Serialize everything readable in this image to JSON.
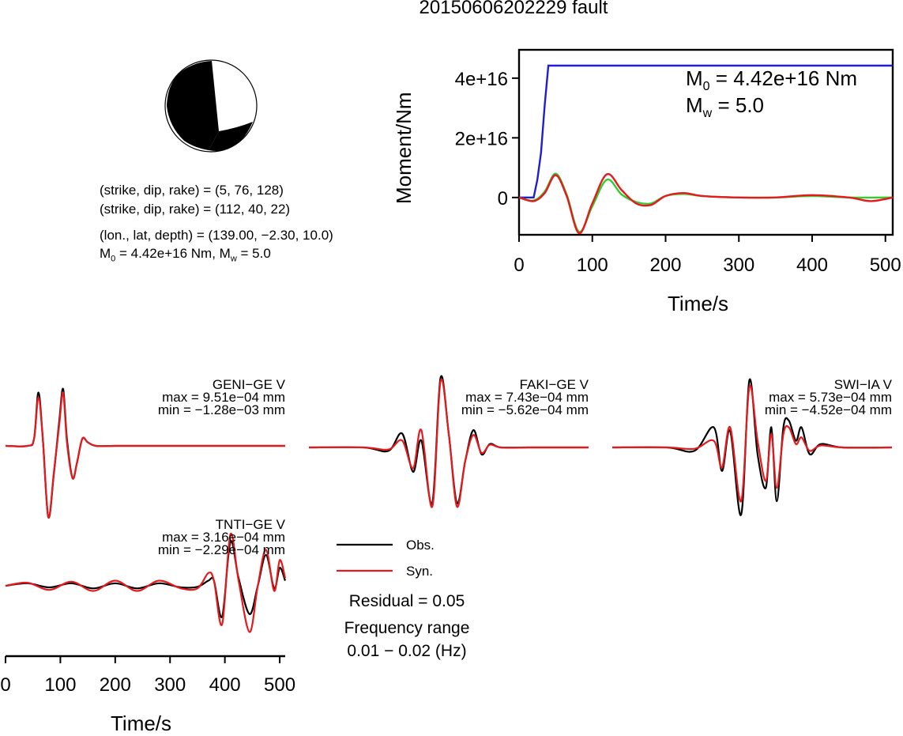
{
  "title": "20150606202229 fault",
  "info": {
    "line1": "(strike, dip, rake) = (5, 76, 128)",
    "line2": "(strike, dip, rake) = (112, 40, 22)",
    "line3": "(lon., lat, depth) = (139.00, −2.30, 10.0)",
    "line4_pre": "M",
    "line4_sub": "0",
    "line4_mid": " = 4.42e+16 Nm, M",
    "line4_sub2": "w",
    "line4_post": " = 5.0"
  },
  "moment_panel": {
    "ylabel": "Moment/Nm",
    "xlabel": "Time/s",
    "m0_pre": "M",
    "m0_sub": "0",
    "m0_post": " = 4.42e+16 Nm",
    "mw_pre": "M",
    "mw_sub": "w",
    "mw_post": " = 5.0"
  },
  "legend": {
    "obs": "Obs.",
    "syn": "Syn.",
    "residual": "Residual = 0.05",
    "freq_label": "Frequency range",
    "freq_value": "0.01 − 0.02 (Hz)"
  },
  "waveform_xlabel": "Time/s",
  "stations": [
    {
      "name": "GENI−GE V",
      "max": "max = 9.51e−04 mm",
      "min": "min = −1.28e−03 mm"
    },
    {
      "name": "FAKI−GE V",
      "max": "max = 7.43e−04 mm",
      "min": "min = −5.62e−04 mm"
    },
    {
      "name": "SWI−IA V",
      "max": "max = 5.73e−04 mm",
      "min": "min = −4.52e−04 mm"
    },
    {
      "name": "TNTI−GE V",
      "max": "max = 3.16e−04 mm",
      "min": "min = −2.29e−04 mm"
    }
  ],
  "colors": {
    "obs": "#000000",
    "syn": "#e41a1c",
    "moment": "#1f1fd0",
    "green": "#33cc33"
  },
  "chart_data": [
    {
      "type": "line",
      "name": "moment-rate",
      "xlabel": "Time/s",
      "ylabel": "Moment/Nm",
      "xlim": [
        0,
        510
      ],
      "ylim": [
        -1.25e+16,
        4.95e+16
      ],
      "xticks": [
        0,
        100,
        200,
        300,
        400,
        500
      ],
      "xtick_labels": [
        "0",
        "100",
        "200",
        "300",
        "400",
        "500"
      ],
      "yticks": [
        0,
        2e+16,
        4e+16
      ],
      "ytick_labels": [
        "0",
        "2e+16",
        "4e+16"
      ],
      "series": [
        {
          "color": "#1f1fd0",
          "x": [
            0,
            20,
            25,
            30,
            35,
            40,
            510
          ],
          "y": [
            0,
            0,
            6000000000000000.0,
            1.5e+16,
            3.1e+16,
            4.42e+16,
            4.42e+16
          ]
        },
        {
          "color": "#33cc33",
          "x": [
            0,
            20,
            35,
            50,
            65,
            82,
            100,
            120,
            140,
            160,
            180,
            200,
            225,
            250,
            300,
            350,
            400,
            450,
            510
          ],
          "y": [
            0,
            -1000000000000000.0,
            2000000000000000.0,
            8000000000000000.0,
            1000000000000000.0,
            -1.15e+16,
            -3000000000000000.0,
            6000000000000000.0,
            1000000000000000.0,
            -1500000000000000.0,
            -2000000000000000.0,
            500000000000000.0,
            1200000000000000.0,
            500000000000000.0,
            0,
            0,
            500000000000000.0,
            0,
            0
          ]
        },
        {
          "color": "#e41a1c",
          "x": [
            0,
            20,
            35,
            50,
            65,
            82,
            100,
            120,
            140,
            160,
            180,
            200,
            225,
            250,
            300,
            350,
            400,
            450,
            480,
            510
          ],
          "y": [
            0,
            -1200000000000000.0,
            1500000000000000.0,
            7500000000000000.0,
            500000000000000.0,
            -1.2e+16,
            -2000000000000000.0,
            7800000000000000.0,
            2500000000000000.0,
            -2000000000000000.0,
            -2500000000000000.0,
            500000000000000.0,
            1500000000000000.0,
            500000000000000.0,
            0,
            0,
            800000000000000.0,
            0,
            -1200000000000000.0,
            0
          ]
        }
      ]
    },
    {
      "type": "line",
      "name": "waveforms",
      "xlabel": "Time/s",
      "xlim": [
        0,
        510
      ],
      "xticks": [
        0,
        100,
        200,
        300,
        400,
        500
      ],
      "xtick_labels": [
        "0",
        "100",
        "200",
        "300",
        "400",
        "500"
      ],
      "traces": [
        {
          "station": "GENI−GE V",
          "obs": {
            "x": [
              0,
              40,
              52,
              60,
              68,
              78,
              88,
              98,
              105,
              112,
              122,
              130,
              140,
              150,
              165,
              200,
              300,
              400,
              510
            ],
            "y": [
              0,
              0,
              0.1,
              0.75,
              0.1,
              -1.0,
              -0.4,
              0.35,
              0.8,
              0.1,
              -0.45,
              -0.25,
              0.1,
              0.05,
              0,
              0,
              0,
              0,
              0
            ]
          },
          "syn": {
            "x": [
              0,
              40,
              52,
              60,
              68,
              78,
              88,
              98,
              105,
              112,
              122,
              130,
              140,
              150,
              165,
              200,
              300,
              400,
              510
            ],
            "y": [
              0,
              0,
              0.1,
              0.68,
              0.1,
              -1.0,
              -0.38,
              0.3,
              0.75,
              0.05,
              -0.45,
              -0.25,
              0.1,
              0.05,
              0,
              0,
              0,
              0,
              0
            ]
          }
        },
        {
          "station": "FAKI−GE V",
          "obs": {
            "x": [
              0,
              100,
              145,
              170,
              190,
              205,
              225,
              240,
              255,
              270,
              285,
              300,
              315,
              330,
              350,
              400,
              450,
              480,
              510
            ],
            "y": [
              0,
              0,
              -0.05,
              0.2,
              -0.35,
              0.1,
              -0.8,
              1.0,
              0.2,
              -0.8,
              -0.2,
              0.25,
              -0.1,
              0.05,
              0,
              0,
              0,
              0,
              0
            ]
          },
          "syn": {
            "x": [
              0,
              100,
              145,
              170,
              190,
              205,
              225,
              240,
              255,
              270,
              285,
              300,
              315,
              330,
              350,
              400,
              450,
              480,
              510
            ],
            "y": [
              0,
              0,
              -0.03,
              0.1,
              -0.3,
              0.25,
              -0.85,
              0.95,
              0.2,
              -0.85,
              -0.2,
              0.18,
              -0.08,
              0.04,
              0,
              0,
              0,
              0,
              0
            ]
          }
        },
        {
          "station": "SWI−IA V",
          "obs": {
            "x": [
              0,
              100,
              150,
              185,
              200,
              215,
              235,
              250,
              265,
              280,
              290,
              300,
              312,
              322,
              335,
              345,
              360,
              380,
              420,
              510
            ],
            "y": [
              0,
              0,
              -0.05,
              0.3,
              -0.35,
              0.25,
              -1.0,
              1.0,
              -0.1,
              -0.6,
              0.3,
              -0.8,
              0.3,
              0.4,
              0.1,
              0.3,
              -0.1,
              0.05,
              0,
              0
            ]
          },
          "syn": {
            "x": [
              0,
              100,
              150,
              185,
              200,
              215,
              235,
              250,
              265,
              280,
              290,
              300,
              312,
              322,
              335,
              345,
              360,
              380,
              420,
              510
            ],
            "y": [
              0,
              0,
              -0.02,
              0.1,
              -0.3,
              0.3,
              -0.8,
              0.9,
              0.1,
              -0.5,
              0.2,
              -0.6,
              0.2,
              0.3,
              0.05,
              0.15,
              -0.05,
              0.03,
              0,
              0
            ]
          }
        },
        {
          "station": "TNTI−GE V",
          "obs": {
            "x": [
              0,
              40,
              80,
              120,
              160,
              200,
              240,
              280,
              320,
              350,
              370,
              380,
              395,
              410,
              425,
              445,
              460,
              475,
              490,
              500,
              510
            ],
            "y": [
              0,
              0.05,
              -0.03,
              0.05,
              -0.05,
              0.05,
              -0.05,
              0.05,
              -0.03,
              -0.02,
              0.1,
              0.1,
              -0.6,
              0.85,
              0.15,
              -0.55,
              0.0,
              0.6,
              -0.05,
              0.35,
              0.1
            ]
          },
          "syn": {
            "x": [
              0,
              40,
              80,
              120,
              160,
              200,
              240,
              280,
              320,
              350,
              370,
              380,
              395,
              410,
              425,
              445,
              460,
              475,
              490,
              500,
              510
            ],
            "y": [
              0,
              0.06,
              -0.08,
              0.08,
              -0.1,
              0.1,
              -0.1,
              0.1,
              -0.05,
              -0.05,
              0.25,
              0.1,
              -0.75,
              1.0,
              0.1,
              -0.9,
              0.0,
              0.7,
              -0.1,
              0.5,
              0.15
            ]
          }
        }
      ]
    }
  ]
}
